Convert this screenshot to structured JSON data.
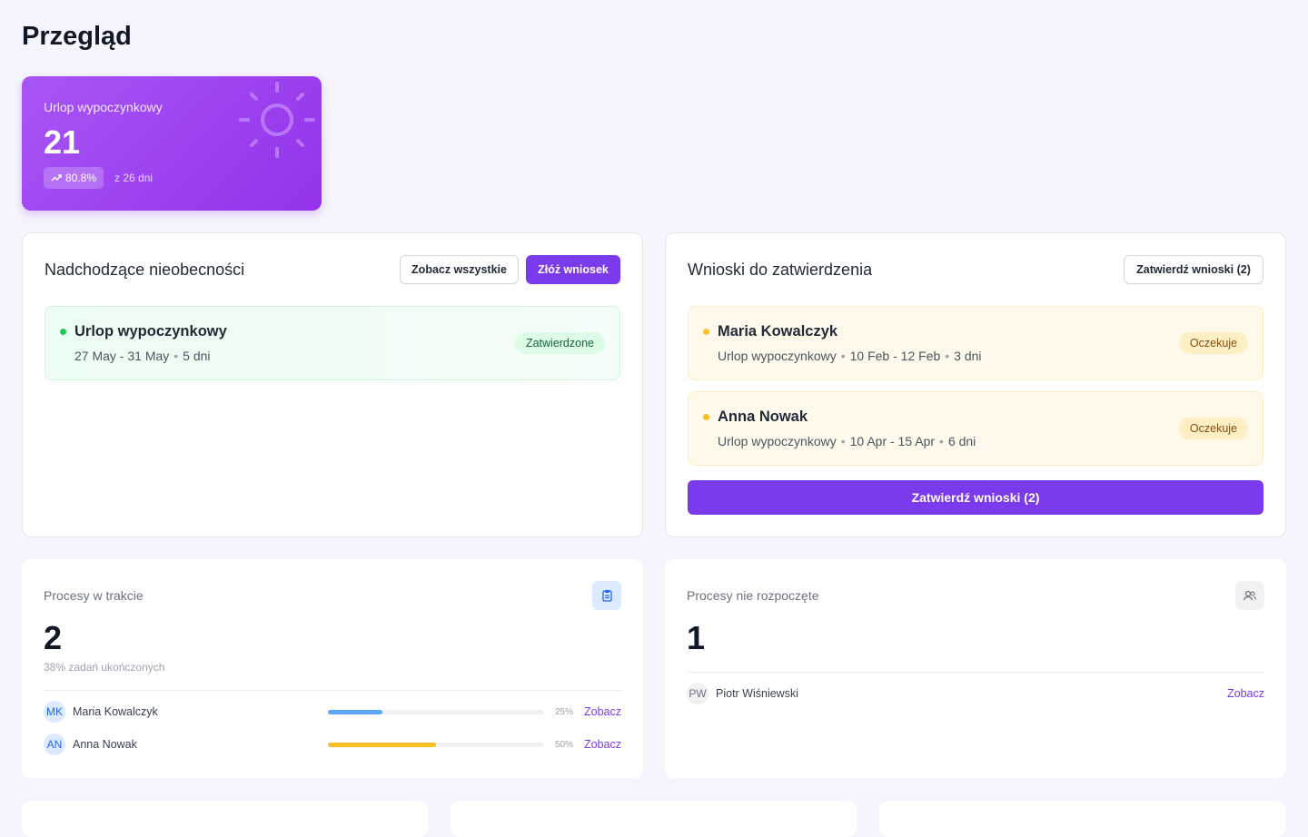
{
  "header": {
    "title": "Przegląd"
  },
  "leave_card": {
    "label": "Urlop wypoczynkowy",
    "value": "21",
    "trend": "80.8%",
    "note": "z 26 dni"
  },
  "upcoming": {
    "title": "Nadchodzące nieobecności",
    "buttons": [
      "Zobacz wszystkie",
      "Złóż wniosek"
    ],
    "items": [
      {
        "type": "Urlop wypoczynkowy",
        "dates": "27 May - 31 May",
        "days": "5 dni",
        "status": "Zatwierdzone"
      }
    ]
  },
  "approvals": {
    "title": "Wnioski do zatwierdzenia",
    "header_button": "Zatwierdź wnioski (2)",
    "items": [
      {
        "name": "Maria Kowalczyk",
        "type": "Urlop wypoczynkowy",
        "dates": "10 Feb - 12 Feb",
        "days": "3 dni",
        "status": "Oczekuje"
      },
      {
        "name": "Anna Nowak",
        "type": "Urlop wypoczynkowy",
        "dates": "10 Apr - 15 Apr",
        "days": "6 dni",
        "status": "Oczekuje"
      }
    ],
    "footer_button": "Zatwierdź wnioski (2)"
  },
  "in_progress": {
    "title": "Procesy w trakcie",
    "count": "2",
    "subtitle": "38% zadań ukończonych",
    "rows": [
      {
        "initials": "MK",
        "name": "Maria Kowalczyk",
        "progress": {
          "value": 25,
          "label": "25%"
        },
        "color": "#60a5fa",
        "link": "Zobacz"
      },
      {
        "initials": "AN",
        "name": "Anna Nowak",
        "progress": {
          "value": 50,
          "label": "50%"
        },
        "color": "#fbbf24",
        "link": "Zobacz"
      }
    ]
  },
  "not_started": {
    "title": "Procesy nie rozpoczęte",
    "count": "1",
    "rows": [
      {
        "initials": "PW",
        "name": "Piotr Wiśniewski",
        "link": "Zobacz"
      }
    ]
  }
}
